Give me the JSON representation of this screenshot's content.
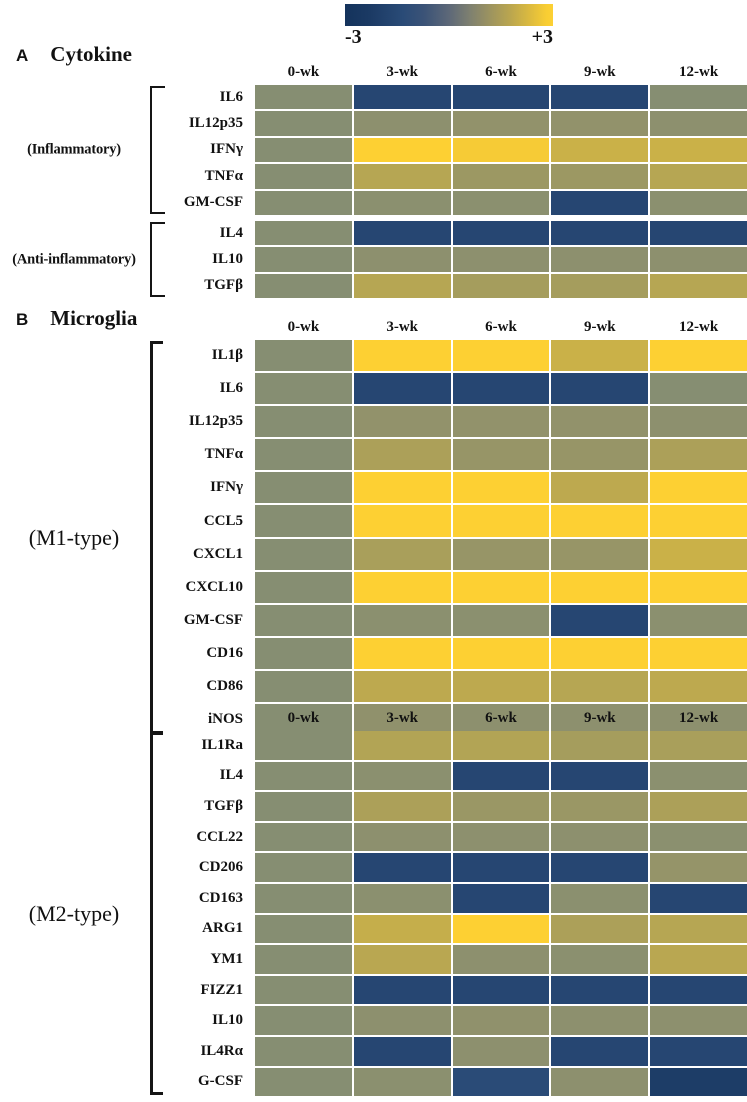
{
  "colorbar": {
    "min_label": "-3",
    "max_label": "+3"
  },
  "palette": {
    "negative": "#2A4B77",
    "baseline": "#868E72",
    "positive": "#FDD033",
    "stops": [
      [
        -3,
        "#14335C"
      ],
      [
        -2.5,
        "#2A4B77"
      ],
      [
        -1.5,
        "#41587A"
      ],
      [
        -0.5,
        "#6F7C77"
      ],
      [
        0,
        "#868E72"
      ],
      [
        0.5,
        "#92926B"
      ],
      [
        1,
        "#9F9A61"
      ],
      [
        1.5,
        "#AFA257"
      ],
      [
        2,
        "#C0AB4D"
      ],
      [
        2.5,
        "#D9B941"
      ],
      [
        3,
        "#FDD033"
      ]
    ]
  },
  "chart_data": [
    {
      "type": "heatmap",
      "panel": "A",
      "title": "Cytokine",
      "columns": [
        "0-wk",
        "3-wk",
        "6-wk",
        "9-wk",
        "12-wk"
      ],
      "value_range": [
        -3,
        3
      ],
      "groups": [
        {
          "label": "(Inflammatory)",
          "rows": [
            {
              "name": "IL6",
              "values": [
                0,
                -2.6,
                -2.6,
                -2.6,
                0
              ]
            },
            {
              "name": "IL12p35",
              "values": [
                0,
                0.3,
                0.5,
                0.5,
                0.3
              ]
            },
            {
              "name": "IFNγ",
              "values": [
                0,
                3,
                2.9,
                2.2,
                2.2
              ]
            },
            {
              "name": "TNFα",
              "values": [
                0,
                1.7,
                0.9,
                0.9,
                1.7
              ]
            },
            {
              "name": "GM-CSF",
              "values": [
                0,
                0.2,
                0.2,
                -2.6,
                0.2
              ]
            }
          ]
        },
        {
          "label": "(Anti-inflammatory)",
          "rows": [
            {
              "name": "IL4",
              "values": [
                0,
                -2.6,
                -2.6,
                -2.6,
                -2.6
              ]
            },
            {
              "name": "IL10",
              "values": [
                0,
                0.3,
                0.3,
                0.3,
                0.3
              ]
            },
            {
              "name": "TGFβ",
              "values": [
                0,
                1.7,
                1.2,
                1.2,
                1.7
              ]
            }
          ]
        }
      ]
    },
    {
      "type": "heatmap",
      "panel": "B",
      "title": "Microglia",
      "columns": [
        "0-wk",
        "3-wk",
        "6-wk",
        "9-wk",
        "12-wk"
      ],
      "value_range": [
        -3,
        3
      ],
      "groups": [
        {
          "label": "(M1-type)",
          "rows": [
            {
              "name": "IL1β",
              "values": [
                0,
                3,
                3,
                2.2,
                3
              ]
            },
            {
              "name": "IL6",
              "values": [
                0,
                -2.6,
                -2.6,
                -2.6,
                0
              ]
            },
            {
              "name": "IL12p35",
              "values": [
                0,
                0.5,
                0.5,
                0.5,
                0.3
              ]
            },
            {
              "name": "TNFα",
              "values": [
                0,
                1.4,
                0.7,
                0.7,
                1.4
              ]
            },
            {
              "name": "IFNγ",
              "values": [
                0,
                3,
                3,
                1.9,
                3
              ]
            },
            {
              "name": "CCL5",
              "values": [
                0,
                3,
                3,
                3,
                3
              ]
            },
            {
              "name": "CXCL1",
              "values": [
                0,
                1.3,
                0.7,
                0.7,
                2.2
              ]
            },
            {
              "name": "CXCL10",
              "values": [
                0,
                3,
                3,
                3,
                3
              ]
            },
            {
              "name": "GM-CSF",
              "values": [
                0,
                0.2,
                0.2,
                -2.6,
                0.2
              ]
            },
            {
              "name": "CD16",
              "values": [
                0,
                3,
                3,
                3,
                3
              ]
            },
            {
              "name": "CD86",
              "values": [
                0,
                1.9,
                1.9,
                1.7,
                1.9
              ]
            },
            {
              "name": "iNOS",
              "values": [
                0,
                0.4,
                0.3,
                0.3,
                0.3
              ]
            }
          ]
        }
      ]
    },
    {
      "type": "heatmap",
      "columns": [
        "0-wk",
        "3-wk",
        "6-wk",
        "9-wk",
        "12-wk"
      ],
      "value_range": [
        -3,
        3
      ],
      "groups": [
        {
          "label": "(M2-type)",
          "rows": [
            {
              "name": "IL1Ra",
              "values": [
                0,
                1.6,
                1.6,
                1.2,
                1.3
              ]
            },
            {
              "name": "IL4",
              "values": [
                0,
                0.2,
                -2.6,
                -2.6,
                0.2
              ]
            },
            {
              "name": "TGFβ",
              "values": [
                0,
                1.4,
                0.8,
                0.8,
                1.4
              ]
            },
            {
              "name": "CCL22",
              "values": [
                0,
                0.3,
                0.3,
                0.3,
                0.2
              ]
            },
            {
              "name": "CD206",
              "values": [
                0,
                -2.6,
                -2.6,
                -2.6,
                0.6
              ]
            },
            {
              "name": "CD163",
              "values": [
                0,
                0.2,
                -2.6,
                0.2,
                -2.6
              ]
            },
            {
              "name": "ARG1",
              "values": [
                0,
                2.1,
                3,
                1.4,
                1.7
              ]
            },
            {
              "name": "YM1",
              "values": [
                0,
                1.8,
                0.3,
                0.2,
                1.8
              ]
            },
            {
              "name": "FIZZ1",
              "values": [
                0,
                -2.6,
                -2.6,
                -2.6,
                -2.6
              ]
            },
            {
              "name": "IL10",
              "values": [
                0,
                0.3,
                0.4,
                0.3,
                0.3
              ]
            },
            {
              "name": "IL4Rα",
              "values": [
                0,
                -2.6,
                0.3,
                -2.6,
                -2.6
              ]
            },
            {
              "name": "G-CSF",
              "values": [
                0,
                0.2,
                -2.5,
                0.3,
                -2.8
              ]
            }
          ]
        }
      ]
    }
  ]
}
